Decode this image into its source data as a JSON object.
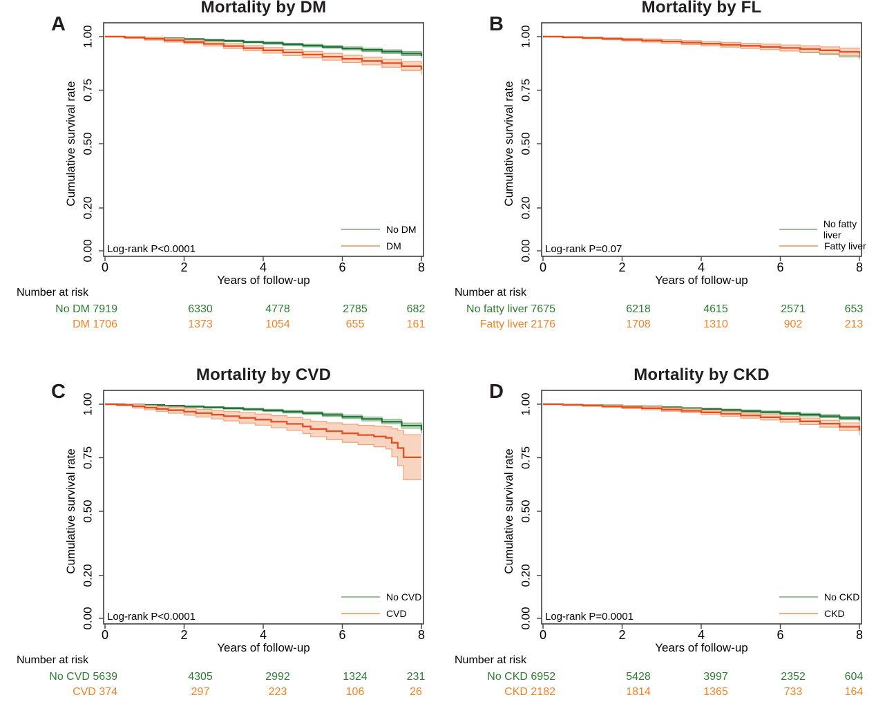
{
  "axes": {
    "xlabel": "Years of follow-up",
    "ylabel": "Cumulative survival rate",
    "x_ticks": [
      0,
      2,
      4,
      6,
      8
    ],
    "x_tick_labels": [
      "0",
      "2",
      "4",
      "6",
      "8"
    ],
    "y_ticks": [
      0.0,
      0.2,
      0.5,
      0.75,
      1.0
    ],
    "y_tick_labels": [
      "0.00",
      "0.20",
      "0.50",
      "0.75",
      "1.00"
    ],
    "xlim": [
      0,
      8
    ],
    "ylim": [
      0,
      1
    ],
    "grid": false,
    "legend_position": "inside-lower-right"
  },
  "risk_header": "Number at risk",
  "colors": {
    "green_line": "#20713a",
    "green_band": "#c9dcc4",
    "green_edge": "#8ab78a",
    "green_text": "#2e7d33",
    "orange_line": "#e35020",
    "orange_band": "#f8d5c0",
    "orange_edge": "#f2a57d",
    "orange_text": "#ef8326",
    "legend_green": "#98bf98",
    "legend_orange": "#f5ab84",
    "frame": "#3f3f3f",
    "title": "#221e1f"
  },
  "chart_data": [
    {
      "type": "line",
      "letter": "A",
      "title": "Mortality by DM",
      "logrank": "Log-rank P<0.0001",
      "risk": {
        "rows": [
          {
            "label": "No DM",
            "color": "green",
            "counts": [
              7919,
              6330,
              4778,
              2785,
              682
            ]
          },
          {
            "label": "DM",
            "color": "orange",
            "counts": [
              1706,
              1373,
              1054,
              655,
              161
            ]
          }
        ]
      },
      "series": [
        {
          "name": "No DM",
          "color": "green",
          "x": [
            0,
            0.5,
            1,
            1.5,
            2,
            2.5,
            3,
            3.5,
            4,
            4.5,
            5,
            5.5,
            6,
            6.5,
            7,
            7.5,
            8
          ],
          "y": [
            1,
            0.998,
            0.995,
            0.992,
            0.988,
            0.984,
            0.98,
            0.975,
            0.97,
            0.964,
            0.958,
            0.952,
            0.945,
            0.938,
            0.93,
            0.921,
            0.91
          ],
          "band": [
            0.001,
            0.001,
            0.002,
            0.002,
            0.003,
            0.003,
            0.004,
            0.004,
            0.005,
            0.005,
            0.006,
            0.006,
            0.007,
            0.008,
            0.008,
            0.009,
            0.01
          ]
        },
        {
          "name": "DM",
          "color": "orange",
          "x": [
            0,
            0.5,
            1,
            1.5,
            2,
            2.5,
            3,
            3.5,
            4,
            4.5,
            5,
            5.5,
            6,
            6.5,
            7,
            7.5,
            8
          ],
          "y": [
            1,
            0.996,
            0.99,
            0.983,
            0.975,
            0.966,
            0.956,
            0.946,
            0.936,
            0.926,
            0.916,
            0.906,
            0.896,
            0.886,
            0.876,
            0.862,
            0.846
          ],
          "band": [
            0.002,
            0.004,
            0.006,
            0.008,
            0.009,
            0.01,
            0.011,
            0.012,
            0.013,
            0.014,
            0.015,
            0.016,
            0.017,
            0.018,
            0.019,
            0.021,
            0.024
          ]
        }
      ]
    },
    {
      "type": "line",
      "letter": "B",
      "title": "Mortality by FL",
      "logrank": "Log-rank P=0.07",
      "risk": {
        "rows": [
          {
            "label": "No fatty liver",
            "color": "green",
            "counts": [
              7675,
              6218,
              4615,
              2571,
              653
            ]
          },
          {
            "label": "Fatty liver",
            "color": "orange",
            "counts": [
              2176,
              1708,
              1310,
              902,
              213
            ]
          }
        ]
      },
      "series": [
        {
          "name": "No fatty liver",
          "color": "green",
          "x": [
            0,
            0.5,
            1,
            1.5,
            2,
            2.5,
            3,
            3.5,
            4,
            4.5,
            5,
            5.5,
            6,
            6.5,
            7,
            7.5,
            8
          ],
          "y": [
            1,
            0.998,
            0.995,
            0.992,
            0.988,
            0.984,
            0.979,
            0.973,
            0.967,
            0.961,
            0.954,
            0.947,
            0.94,
            0.932,
            0.924,
            0.914,
            0.904
          ],
          "band": [
            0.001,
            0.001,
            0.002,
            0.002,
            0.003,
            0.003,
            0.004,
            0.004,
            0.005,
            0.005,
            0.006,
            0.006,
            0.007,
            0.007,
            0.008,
            0.009,
            0.01
          ]
        },
        {
          "name": "Fatty liver",
          "color": "orange",
          "x": [
            0,
            0.5,
            1,
            1.5,
            2,
            2.5,
            3,
            3.5,
            4,
            4.5,
            5,
            5.5,
            6,
            6.5,
            7,
            7.5,
            8
          ],
          "y": [
            1,
            0.997,
            0.994,
            0.99,
            0.986,
            0.982,
            0.977,
            0.972,
            0.967,
            0.962,
            0.957,
            0.952,
            0.947,
            0.942,
            0.936,
            0.929,
            0.921
          ],
          "band": [
            0.002,
            0.003,
            0.004,
            0.005,
            0.006,
            0.007,
            0.008,
            0.009,
            0.01,
            0.011,
            0.012,
            0.013,
            0.014,
            0.015,
            0.016,
            0.017,
            0.019
          ]
        }
      ]
    },
    {
      "type": "line",
      "letter": "C",
      "title": "Mortality by CVD",
      "logrank": "Log-rank P<0.0001",
      "risk": {
        "rows": [
          {
            "label": "No CVD",
            "color": "green",
            "counts": [
              5639,
              4305,
              2992,
              1324,
              231
            ]
          },
          {
            "label": "CVD",
            "color": "orange",
            "counts": [
              374,
              297,
              223,
              106,
              26
            ]
          }
        ]
      },
      "series": [
        {
          "name": "No CVD",
          "color": "green",
          "x": [
            0,
            0.5,
            1,
            1.5,
            2,
            2.5,
            3,
            3.5,
            4,
            4.5,
            5,
            5.5,
            6,
            6.5,
            7,
            7.5,
            8
          ],
          "y": [
            1,
            0.998,
            0.996,
            0.993,
            0.989,
            0.985,
            0.981,
            0.976,
            0.971,
            0.965,
            0.958,
            0.95,
            0.941,
            0.931,
            0.918,
            0.9,
            0.878
          ],
          "band": [
            0.001,
            0.001,
            0.002,
            0.002,
            0.003,
            0.003,
            0.004,
            0.004,
            0.005,
            0.006,
            0.006,
            0.007,
            0.008,
            0.009,
            0.01,
            0.012,
            0.014
          ]
        },
        {
          "name": "CVD",
          "color": "orange",
          "x": [
            0,
            0.3,
            0.7,
            1.0,
            1.3,
            1.6,
            2.0,
            2.3,
            2.7,
            3.0,
            3.4,
            3.8,
            4.2,
            4.6,
            5.0,
            5.2,
            5.6,
            6.0,
            6.4,
            6.8,
            7.1,
            7.25,
            7.4,
            7.55,
            8
          ],
          "y": [
            1,
            0.997,
            0.99,
            0.984,
            0.978,
            0.972,
            0.965,
            0.958,
            0.951,
            0.944,
            0.936,
            0.928,
            0.918,
            0.908,
            0.896,
            0.884,
            0.874,
            0.864,
            0.856,
            0.849,
            0.843,
            0.82,
            0.795,
            0.752,
            0.752
          ],
          "band": [
            0.003,
            0.005,
            0.008,
            0.01,
            0.012,
            0.014,
            0.016,
            0.018,
            0.02,
            0.022,
            0.024,
            0.026,
            0.028,
            0.03,
            0.033,
            0.036,
            0.039,
            0.042,
            0.045,
            0.048,
            0.052,
            0.065,
            0.082,
            0.105,
            0.105
          ]
        }
      ]
    },
    {
      "type": "line",
      "letter": "D",
      "title": "Mortality by CKD",
      "logrank": "Log-rank P=0.0001",
      "risk": {
        "rows": [
          {
            "label": "No CKD",
            "color": "green",
            "counts": [
              6952,
              5428,
              3997,
              2352,
              604
            ]
          },
          {
            "label": "CKD",
            "color": "orange",
            "counts": [
              2182,
              1814,
              1365,
              733,
              164
            ]
          }
        ]
      },
      "series": [
        {
          "name": "No CKD",
          "color": "green",
          "x": [
            0,
            0.5,
            1,
            1.5,
            2,
            2.5,
            3,
            3.5,
            4,
            4.5,
            5,
            5.5,
            6,
            6.5,
            7,
            7.5,
            8
          ],
          "y": [
            1,
            0.998,
            0.996,
            0.994,
            0.991,
            0.988,
            0.985,
            0.981,
            0.977,
            0.973,
            0.968,
            0.963,
            0.957,
            0.951,
            0.944,
            0.935,
            0.925
          ],
          "band": [
            0.001,
            0.001,
            0.002,
            0.002,
            0.002,
            0.003,
            0.003,
            0.003,
            0.004,
            0.004,
            0.005,
            0.005,
            0.006,
            0.006,
            0.007,
            0.008,
            0.009
          ]
        },
        {
          "name": "CKD",
          "color": "orange",
          "x": [
            0,
            0.5,
            1,
            1.5,
            2,
            2.5,
            3,
            3.5,
            4,
            4.5,
            5,
            5.5,
            6,
            6.5,
            7,
            7.5,
            8
          ],
          "y": [
            1,
            0.997,
            0.994,
            0.99,
            0.986,
            0.981,
            0.975,
            0.969,
            0.962,
            0.955,
            0.947,
            0.939,
            0.93,
            0.92,
            0.909,
            0.895,
            0.877
          ],
          "band": [
            0.002,
            0.003,
            0.004,
            0.005,
            0.006,
            0.007,
            0.008,
            0.009,
            0.01,
            0.011,
            0.012,
            0.013,
            0.014,
            0.015,
            0.016,
            0.018,
            0.021
          ]
        }
      ]
    }
  ]
}
